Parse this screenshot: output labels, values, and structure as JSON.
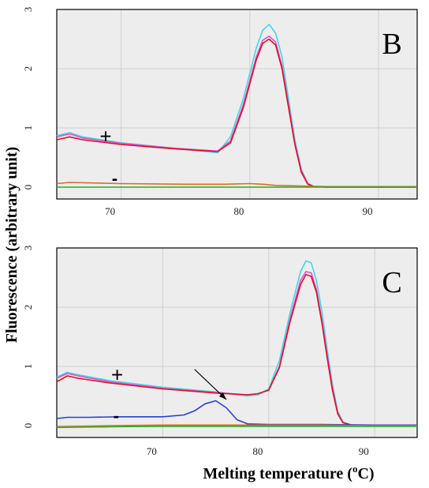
{
  "ylabel": "Fluorescence (arbitrary unit)",
  "xlabel": {
    "text": "Melting temperature (",
    "sup": "o",
    "tail": "C)"
  },
  "colors": {
    "plot_bg": "#ededed",
    "grid": "#cfcfcf",
    "frame": "#000000",
    "cyan": "#3fd9e6",
    "magenta": "#e24bd2",
    "red": "#e01020",
    "orange": "#e06a20",
    "blue": "#2a3fd8",
    "green": "#21b021"
  },
  "chart_data": [
    {
      "type": "line",
      "panel": "B",
      "x_range": [
        65,
        93
      ],
      "ylim": [
        -0.2,
        3
      ],
      "x_ticks": [
        "70",
        "80",
        "90"
      ],
      "x_tick_values": [
        70,
        80,
        90
      ],
      "y_ticks": [
        "0",
        "1",
        "2",
        "3"
      ],
      "y_tick_values": [
        0,
        1,
        2,
        3
      ],
      "grid": true,
      "annotations": [
        {
          "text": "+",
          "x": 68.8,
          "y": 0.85
        },
        {
          "text": "-",
          "x": 69.5,
          "y": 0.1
        }
      ],
      "series": [
        {
          "color": "cyan",
          "x": [
            65,
            66,
            67,
            70,
            74,
            77.5,
            78.5,
            79.5,
            80.5,
            81,
            81.5,
            82,
            82.5,
            83,
            83.5,
            84,
            84.5,
            85,
            86,
            90,
            93
          ],
          "y": [
            0.87,
            0.92,
            0.85,
            0.75,
            0.66,
            0.58,
            0.85,
            1.5,
            2.35,
            2.65,
            2.75,
            2.6,
            2.2,
            1.5,
            0.8,
            0.3,
            0.06,
            0.01,
            0.0,
            0.0,
            0.0
          ]
        },
        {
          "color": "magenta",
          "x": [
            65,
            66,
            67,
            70,
            74,
            77.5,
            78.5,
            79.5,
            80.5,
            81,
            81.5,
            82,
            82.5,
            83,
            83.5,
            84,
            84.5,
            85,
            86,
            90,
            93
          ],
          "y": [
            0.85,
            0.9,
            0.83,
            0.74,
            0.66,
            0.61,
            0.78,
            1.4,
            2.2,
            2.48,
            2.55,
            2.45,
            2.05,
            1.4,
            0.75,
            0.28,
            0.06,
            0.01,
            0.0,
            0.0,
            0.0
          ]
        },
        {
          "color": "red",
          "x": [
            65,
            66,
            67,
            70,
            74,
            77.5,
            78.5,
            79.5,
            80.5,
            81,
            81.5,
            82,
            82.5,
            83,
            83.5,
            84,
            84.5,
            85,
            86,
            90,
            93
          ],
          "y": [
            0.8,
            0.85,
            0.8,
            0.72,
            0.65,
            0.6,
            0.75,
            1.35,
            2.15,
            2.43,
            2.5,
            2.4,
            2.0,
            1.35,
            0.72,
            0.25,
            0.05,
            0.01,
            0.0,
            0.0,
            0.0
          ]
        },
        {
          "color": "orange",
          "x": [
            65,
            66,
            70,
            75,
            78,
            80,
            81,
            82,
            84,
            86,
            88,
            90,
            93
          ],
          "y": [
            0.06,
            0.08,
            0.06,
            0.05,
            0.05,
            0.06,
            0.05,
            0.03,
            0.02,
            0.01,
            0.01,
            0.01,
            0.01
          ]
        },
        {
          "color": "green",
          "x": [
            65,
            70,
            80,
            90,
            93
          ],
          "y": [
            0.0,
            0.0,
            0.0,
            0.0,
            0.0
          ]
        }
      ]
    },
    {
      "type": "line",
      "panel": "C",
      "x_range": [
        60,
        94
      ],
      "ylim": [
        -0.2,
        3
      ],
      "x_ticks": [
        "70",
        "80",
        "90"
      ],
      "x_tick_values": [
        70,
        80,
        90
      ],
      "y_ticks": [
        "0",
        "1",
        "2",
        "3"
      ],
      "y_tick_values": [
        0,
        1,
        2,
        3
      ],
      "grid": true,
      "annotations": [
        {
          "text": "+",
          "x": 65.7,
          "y": 0.85
        },
        {
          "text": "-",
          "x": 65.6,
          "y": 0.12
        },
        {
          "text": "arrow",
          "x_from": 73.0,
          "y_from": 0.95,
          "x_to": 76.0,
          "y_to": 0.44
        }
      ],
      "series": [
        {
          "color": "cyan",
          "x": [
            60,
            61,
            62,
            65,
            70,
            75,
            78,
            79,
            80,
            81,
            82,
            83,
            83.5,
            84,
            84.5,
            85,
            85.5,
            86,
            86.5,
            87,
            88,
            94
          ],
          "y": [
            0.82,
            0.9,
            0.86,
            0.76,
            0.65,
            0.57,
            0.5,
            0.52,
            0.62,
            1.1,
            1.9,
            2.6,
            2.78,
            2.75,
            2.45,
            1.95,
            1.3,
            0.7,
            0.25,
            0.06,
            0.0,
            0.0
          ]
        },
        {
          "color": "magenta",
          "x": [
            60,
            61,
            62,
            65,
            70,
            75,
            78,
            79,
            80,
            81,
            82,
            83,
            83.5,
            84,
            84.5,
            85,
            85.5,
            86,
            86.5,
            87,
            88,
            94
          ],
          "y": [
            0.8,
            0.88,
            0.84,
            0.74,
            0.63,
            0.56,
            0.52,
            0.54,
            0.6,
            1.0,
            1.8,
            2.45,
            2.6,
            2.58,
            2.3,
            1.8,
            1.2,
            0.65,
            0.22,
            0.05,
            0.0,
            0.0
          ]
        },
        {
          "color": "red",
          "x": [
            60,
            61,
            62,
            65,
            70,
            75,
            78,
            79,
            80,
            81,
            82,
            83,
            83.5,
            84,
            84.5,
            85,
            85.5,
            86,
            86.5,
            87,
            88,
            94
          ],
          "y": [
            0.74,
            0.84,
            0.8,
            0.72,
            0.62,
            0.55,
            0.52,
            0.54,
            0.6,
            0.98,
            1.75,
            2.38,
            2.55,
            2.52,
            2.25,
            1.75,
            1.15,
            0.6,
            0.2,
            0.05,
            0.0,
            0.0
          ]
        },
        {
          "color": "blue",
          "x": [
            60,
            61,
            63,
            66,
            70,
            72,
            73,
            74,
            75,
            76,
            77,
            78,
            80,
            85,
            90,
            94
          ],
          "y": [
            0.12,
            0.14,
            0.14,
            0.15,
            0.15,
            0.18,
            0.25,
            0.37,
            0.42,
            0.3,
            0.1,
            0.03,
            0.02,
            0.02,
            0.01,
            0.01
          ]
        },
        {
          "color": "orange",
          "x": [
            60,
            65,
            70,
            75,
            80,
            85,
            90,
            94
          ],
          "y": [
            -0.02,
            0.0,
            0.01,
            0.01,
            0.01,
            0.01,
            0.0,
            0.0
          ]
        },
        {
          "color": "green",
          "x": [
            60,
            65,
            70,
            75,
            80,
            85,
            90,
            94
          ],
          "y": [
            -0.03,
            -0.02,
            -0.01,
            -0.01,
            -0.01,
            -0.01,
            -0.01,
            -0.01
          ]
        }
      ]
    }
  ]
}
